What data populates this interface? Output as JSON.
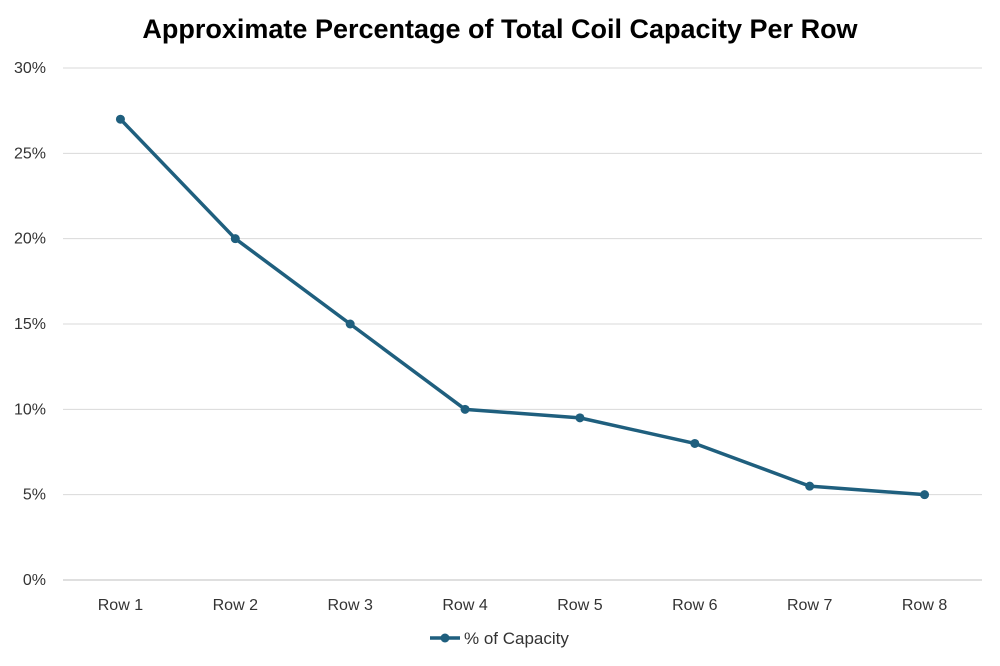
{
  "chart_data": {
    "type": "line",
    "title": "Approximate Percentage of Total Coil Capacity Per Row",
    "xlabel": "",
    "ylabel": "",
    "categories": [
      "Row 1",
      "Row 2",
      "Row 3",
      "Row 4",
      "Row 5",
      "Row 6",
      "Row 7",
      "Row 8"
    ],
    "series": [
      {
        "name": "% of Capacity",
        "values": [
          27,
          20,
          15,
          10,
          9.5,
          8,
          5.5,
          5
        ]
      }
    ],
    "ylim": [
      0,
      30
    ],
    "yticks": [
      0,
      5,
      10,
      15,
      20,
      25,
      30
    ],
    "ytick_suffix": "%",
    "grid": "horizontal",
    "legend": "bottom",
    "colors": {
      "line": "#1f5f7e",
      "grid": "#d9d9d9",
      "axis": "#bfbfbf"
    }
  }
}
